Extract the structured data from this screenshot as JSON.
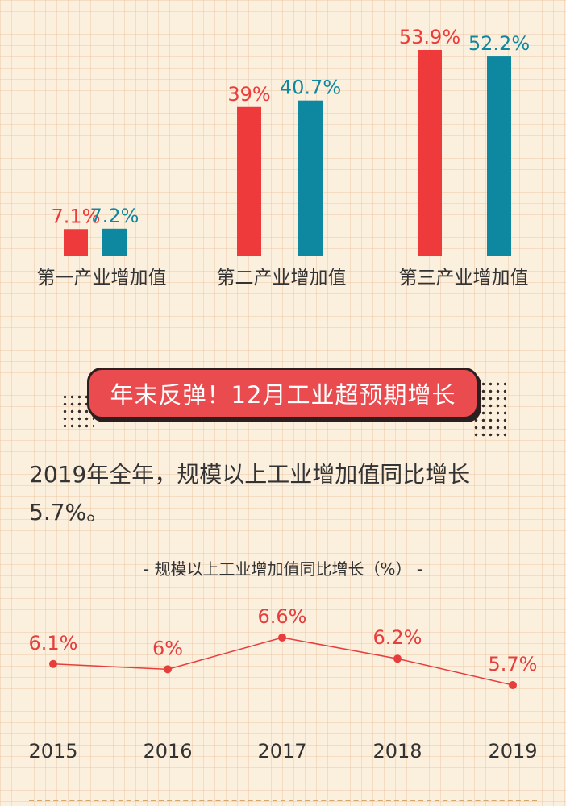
{
  "chart_data": [
    {
      "type": "bar",
      "categories": [
        "第一产业增加值",
        "第二产业增加值",
        "第三产业增加值"
      ],
      "series": [
        {
          "values": [
            7.1,
            39,
            53.9
          ],
          "labels": [
            "7.1%",
            "39%",
            "53.9%"
          ],
          "color": "#ee3a3a"
        },
        {
          "values": [
            7.2,
            40.7,
            52.2
          ],
          "labels": [
            "7.2%",
            "40.7%",
            "52.2%"
          ],
          "color": "#0e87a0"
        }
      ],
      "ylim": [
        0,
        55
      ],
      "grid": false
    },
    {
      "type": "line",
      "title": "规模以上工业增加值同比增长（%）",
      "x": [
        "2015",
        "2016",
        "2017",
        "2018",
        "2019"
      ],
      "values": [
        6.1,
        6,
        6.6,
        6.2,
        5.7
      ],
      "labels": [
        "6.1%",
        "6%",
        "6.6%",
        "6.2%",
        "5.7%"
      ],
      "color": "#e63d3d",
      "ylim": [
        5.5,
        6.7
      ],
      "grid": false
    }
  ],
  "banner": {
    "text": "年末反弹！12月工业超预期增长"
  },
  "summary": {
    "text": "2019年全年，规模以上工业增加值同比增长5.7%。"
  },
  "line_title": {
    "text": "- 规模以上工业增加值同比增长（%） -"
  }
}
